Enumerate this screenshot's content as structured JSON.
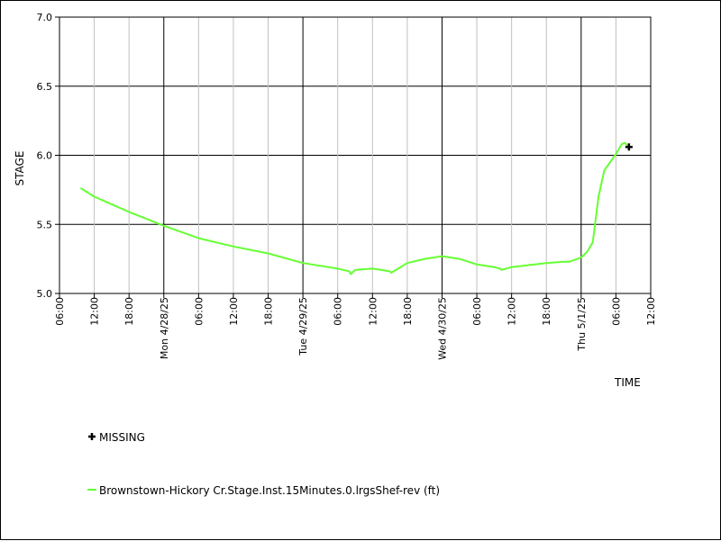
{
  "chart_data": {
    "type": "line",
    "xlabel": "TIME",
    "ylabel": "STAGE",
    "ylim": [
      5.0,
      7.0
    ],
    "yticks": [
      "5.0",
      "5.5",
      "6.0",
      "6.5",
      "7.0"
    ],
    "x_range": [
      "2025-04-27 06:00",
      "2025-05-01 12:00"
    ],
    "x_minor_tick_labels": [
      "06:00",
      "12:00",
      "18:00",
      "06:00",
      "12:00",
      "18:00",
      "06:00",
      "12:00",
      "18:00",
      "06:00",
      "12:00",
      "18:00",
      "06:00",
      "12:00"
    ],
    "x_major_tick_labels": [
      "Mon 4/28/25",
      "Tue 4/29/25",
      "Wed 4/30/25",
      "Thu 5/1/25"
    ],
    "grid": true,
    "legend": {
      "placement": "below-plot",
      "missing_label": "MISSING",
      "missing_marker_color": "#000000",
      "series_line_color": "#66ff33"
    },
    "series": [
      {
        "name": "Brownstown-Hickory Cr.Stage.Inst.15Minutes.0.lrgsShef-rev (ft)",
        "color": "#66ff33",
        "x": [
          "2025-04-27 09:45",
          "2025-04-27 10:30",
          "2025-04-27 12:00",
          "2025-04-27 18:00",
          "2025-04-28 00:00",
          "2025-04-28 06:00",
          "2025-04-28 12:00",
          "2025-04-28 18:00",
          "2025-04-29 00:00",
          "2025-04-29 06:00",
          "2025-04-29 08:00",
          "2025-04-29 08:15",
          "2025-04-29 09:00",
          "2025-04-29 12:00",
          "2025-04-29 15:00",
          "2025-04-29 15:15",
          "2025-04-29 18:00",
          "2025-04-29 21:00",
          "2025-04-30 00:00",
          "2025-04-30 03:00",
          "2025-04-30 06:00",
          "2025-04-30 09:00",
          "2025-04-30 10:00",
          "2025-04-30 10:15",
          "2025-04-30 12:00",
          "2025-04-30 18:00",
          "2025-04-30 21:00",
          "2025-04-30 22:00",
          "2025-05-01 00:00",
          "2025-05-01 01:00",
          "2025-05-01 02:00",
          "2025-05-01 03:00",
          "2025-05-01 04:00",
          "2025-05-01 06:00",
          "2025-05-01 07:00",
          "2025-05-01 07:30",
          "2025-05-01 08:00"
        ],
        "y": [
          5.76,
          5.74,
          5.7,
          5.59,
          5.49,
          5.4,
          5.34,
          5.29,
          5.22,
          5.18,
          5.16,
          5.14,
          5.17,
          5.18,
          5.16,
          5.15,
          5.22,
          5.25,
          5.27,
          5.25,
          5.21,
          5.19,
          5.18,
          5.17,
          5.19,
          5.22,
          5.23,
          5.23,
          5.26,
          5.3,
          5.37,
          5.7,
          5.89,
          6.01,
          6.08,
          6.09,
          6.07
        ]
      }
    ],
    "missing_points": [
      {
        "x": "2025-05-01 08:15",
        "y": 6.06
      }
    ]
  }
}
